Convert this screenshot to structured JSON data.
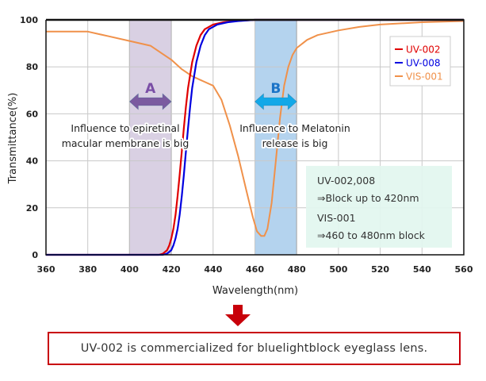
{
  "chart_data": {
    "type": "line",
    "title": "",
    "xlabel": "Wavelength(nm)",
    "ylabel": "Transmittance(%)",
    "xlim": [
      360,
      560
    ],
    "ylim": [
      0,
      100
    ],
    "grid": true,
    "xticks": [
      "360",
      "380",
      "400",
      "420",
      "440",
      "460",
      "480",
      "500",
      "520",
      "540",
      "560"
    ],
    "yticks": [
      "0",
      "20",
      "40",
      "60",
      "80",
      "100"
    ],
    "legend_position": "top-right",
    "series": [
      {
        "name": "UV-002",
        "color": "#e00000",
        "x": [
          360,
          400,
          414,
          416,
          418,
          419,
          420,
          421,
          422,
          423,
          424,
          425,
          426,
          427,
          428,
          430,
          432,
          434,
          436,
          440,
          445,
          450,
          460,
          480,
          500,
          560
        ],
        "y": [
          0,
          0,
          0,
          0.5,
          2,
          4,
          7,
          11,
          17,
          25,
          34,
          44,
          54,
          63,
          71,
          82,
          89,
          93.5,
          96,
          98,
          99,
          99.5,
          100,
          100,
          100,
          100
        ]
      },
      {
        "name": "UV-008",
        "color": "#0000e0",
        "x": [
          360,
          400,
          416,
          418,
          420,
          421,
          422,
          423,
          424,
          425,
          426,
          427,
          428,
          429,
          430,
          432,
          434,
          436,
          438,
          442,
          447,
          452,
          460,
          480,
          500,
          560
        ],
        "y": [
          0,
          0,
          0,
          0.5,
          2,
          4,
          7,
          11,
          17,
          25,
          34,
          44,
          54,
          63,
          71,
          82,
          89,
          93.5,
          96,
          98,
          99,
          99.5,
          100,
          100,
          100,
          100
        ]
      },
      {
        "name": "VIS-001",
        "color": "#f0914a",
        "x": [
          360,
          370,
          380,
          390,
          400,
          405,
          410,
          415,
          420,
          425,
          430,
          435,
          440,
          444,
          448,
          452,
          456,
          459,
          461,
          463,
          464.5,
          466,
          468,
          470,
          472,
          474,
          476,
          478,
          480,
          485,
          490,
          500,
          510,
          520,
          540,
          560
        ],
        "y": [
          95,
          95,
          95,
          93,
          91,
          90,
          89,
          86,
          83,
          79,
          76,
          74,
          72,
          66,
          55,
          42,
          27,
          16,
          10,
          8,
          8,
          11,
          22,
          40,
          58,
          72,
          80,
          85,
          88,
          91.5,
          93.5,
          95.5,
          97,
          98,
          99,
          99.5
        ]
      }
    ],
    "regions": [
      {
        "label": "A",
        "from": 400,
        "to": 420,
        "color": "#d9d0e3",
        "arrow_color": "#7b5aa0",
        "text": [
          "Influence to epiretinal",
          "macular membrane is big"
        ]
      },
      {
        "label": "B",
        "from": 460,
        "to": 480,
        "color": "#b4d3ee",
        "arrow_color": "#12a8e8",
        "text": [
          "Influence to Melatonin",
          "release is big"
        ]
      }
    ],
    "notes": [
      "UV-002,008",
      "⇒Block up to 420nm",
      "VIS-001",
      "⇒460 to 480nm block"
    ]
  },
  "conclusion": "UV-002 is commercialized for bluelightblock eyeglass lens.",
  "arrow_icon": "down-arrow"
}
